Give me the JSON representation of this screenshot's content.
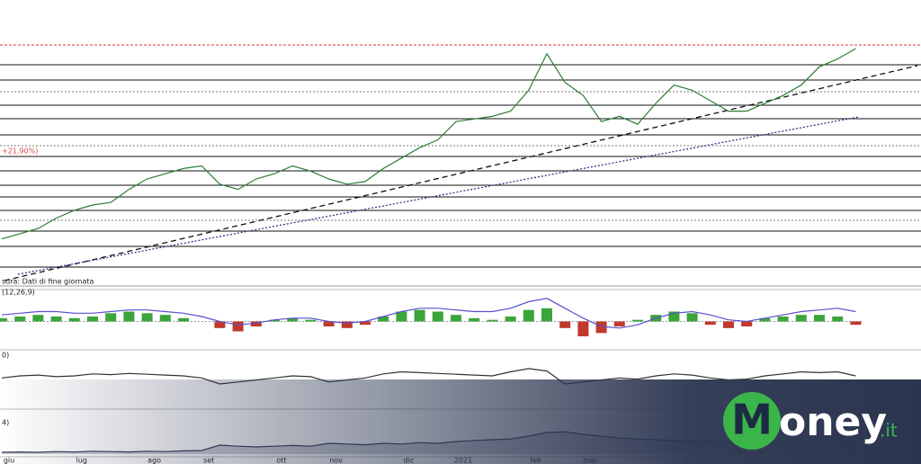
{
  "chart_data": [
    {
      "type": "line",
      "subtitle": "sura: Dati di fine giornata",
      "annotation": "+21,90%)",
      "categories": [
        "giu",
        null,
        null,
        null,
        "lug",
        null,
        null,
        null,
        "ago",
        null,
        null,
        "set",
        null,
        null,
        null,
        "ott",
        null,
        null,
        "nov",
        null,
        null,
        null,
        "dic",
        null,
        null,
        "2021",
        null,
        null,
        null,
        "feb",
        null,
        null,
        "mar",
        null,
        null,
        null,
        null,
        null,
        null,
        null,
        null,
        null,
        null,
        null,
        null,
        null,
        null,
        null
      ],
      "series": [
        {
          "name": "prezzo",
          "color": "#2e7d32",
          "values": [
            17,
            19,
            21,
            25,
            28,
            30,
            31,
            36,
            40,
            42,
            44,
            45,
            38,
            36,
            40,
            42,
            45,
            43,
            40,
            38,
            39,
            44,
            48,
            52,
            55,
            62,
            63,
            64,
            66,
            74,
            88,
            77,
            72,
            62,
            64,
            61,
            69,
            76,
            74,
            70,
            66,
            66,
            69,
            72,
            76,
            83,
            86,
            90
          ]
        }
      ],
      "ylim": [
        0,
        100
      ]
    },
    {
      "type": "macd",
      "label": "(12,26,9)",
      "series": [
        {
          "name": "MACD",
          "color": "#5a4fcf",
          "values": [
            4,
            5,
            6,
            6,
            5,
            5,
            6,
            7,
            7,
            6,
            5,
            3,
            0,
            -2,
            -1,
            1,
            2,
            2,
            0,
            -1,
            0,
            3,
            6,
            8,
            8,
            7,
            6,
            6,
            8,
            12,
            14,
            8,
            2,
            -3,
            -4,
            -2,
            2,
            5,
            6,
            4,
            1,
            0,
            2,
            4,
            6,
            7,
            8,
            6
          ]
        }
      ],
      "histogram": [
        2,
        3,
        4,
        3,
        2,
        3,
        5,
        6,
        5,
        4,
        2,
        0,
        -4,
        -6,
        -3,
        1,
        2,
        1,
        -3,
        -4,
        -2,
        3,
        6,
        7,
        6,
        4,
        2,
        1,
        3,
        7,
        8,
        -4,
        -9,
        -7,
        -3,
        1,
        4,
        6,
        5,
        -2,
        -4,
        -3,
        2,
        3,
        4,
        4,
        3,
        -2
      ],
      "colors": {
        "up": "#3aa53a",
        "down": "#c0392b"
      },
      "ylim": [
        -15,
        15
      ]
    },
    {
      "type": "line",
      "label": "0)",
      "series": [
        {
          "name": "RSI",
          "color": "#333333",
          "values": [
            55,
            60,
            62,
            58,
            60,
            65,
            63,
            66,
            64,
            62,
            60,
            55,
            40,
            45,
            50,
            55,
            60,
            58,
            45,
            50,
            55,
            65,
            70,
            68,
            66,
            64,
            62,
            60,
            70,
            78,
            72,
            40,
            45,
            50,
            55,
            52,
            60,
            65,
            62,
            55,
            50,
            52,
            60,
            65,
            70,
            68,
            70,
            60
          ]
        }
      ],
      "ylim": [
        0,
        100
      ]
    },
    {
      "type": "area",
      "label": "4)",
      "series": [
        {
          "name": "volume",
          "color": "#333a55",
          "values": [
            5,
            6,
            5,
            7,
            6,
            8,
            7,
            6,
            8,
            7,
            9,
            10,
            25,
            22,
            20,
            22,
            24,
            22,
            30,
            28,
            26,
            30,
            28,
            32,
            30,
            35,
            38,
            40,
            42,
            50,
            60,
            62,
            55,
            50,
            45,
            42,
            40,
            38,
            36,
            35,
            34,
            33,
            32,
            30,
            28,
            27,
            26,
            25
          ]
        }
      ],
      "ylim": [
        0,
        100
      ]
    }
  ],
  "logo": {
    "initial": "M",
    "name": "oney",
    "suffix": ".it"
  }
}
